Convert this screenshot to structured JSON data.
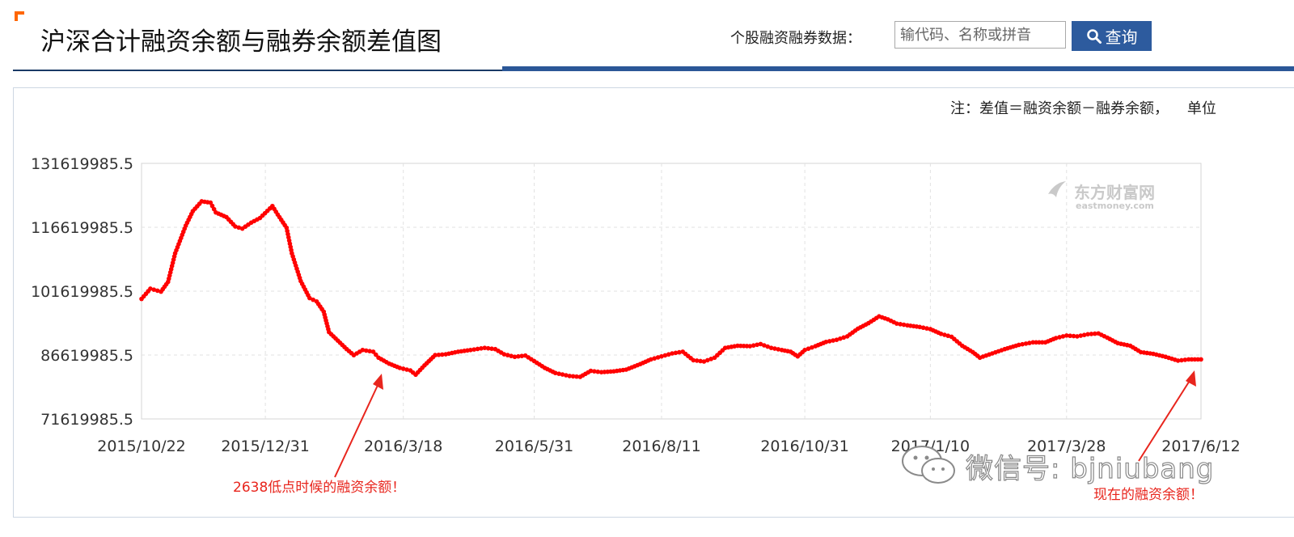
{
  "header": {
    "title": "沪深合计融资余额与融券余额差值图",
    "search_label": "个股融资融券数据：",
    "search_placeholder": "输代码、名称或拼音",
    "search_button": "查询"
  },
  "note": "注：差值＝融资余额－融券余额，    单位",
  "watermark": {
    "cn": "东方财富网",
    "en": "eastmoney.com"
  },
  "annotations": {
    "low_point": "2638低点时候的融资余额！",
    "current": "现在的融资余额！"
  },
  "wechat": "微信号: bjniubang",
  "colors": {
    "series": "#ff0000",
    "annotation": "#e8251d",
    "accent": "#2d5b9e",
    "corner": "#ff6600"
  },
  "chart_data": {
    "type": "line",
    "title": "",
    "xlabel": "",
    "ylabel": "",
    "grid": true,
    "ylim": [
      71619985.5,
      131619985.5
    ],
    "yticks": [
      "131619985.5",
      "116619985.5",
      "101619985.5",
      "86619985.5",
      "71619985.5"
    ],
    "xticks": [
      "2015/10/22",
      "2015/12/31",
      "2016/3/18",
      "2016/5/31",
      "2016/8/11",
      "2016/10/31",
      "2017/1/10",
      "2017/3/28",
      "2017/6/12"
    ],
    "series": [
      {
        "color": "#ff0000",
        "points": [
          [
            "2015/10/22",
            99800000.0
          ],
          [
            "2015/10/27",
            102200000.0
          ],
          [
            "2015/11/2",
            101500000.0
          ],
          [
            "2015/11/6",
            103800000.0
          ],
          [
            "2015/11/10",
            110500000.0
          ],
          [
            "2015/11/16",
            117000000.0
          ],
          [
            "2015/11/20",
            120400000.0
          ],
          [
            "2015/11/25",
            122700000.0
          ],
          [
            "2015/11/30",
            122400000.0
          ],
          [
            "2015/12/3",
            120100000.0
          ],
          [
            "2015/12/9",
            119000000.0
          ],
          [
            "2015/12/14",
            116800000.0
          ],
          [
            "2015/12/18",
            116300000.0
          ],
          [
            "2015/12/23",
            117700000.0
          ],
          [
            "2015/12/28",
            118800000.0
          ],
          [
            "2016/1/4",
            121600000.0
          ],
          [
            "2016/1/7",
            119600000.0
          ],
          [
            "2016/1/12",
            116500000.0
          ],
          [
            "2016/1/15",
            110500000.0
          ],
          [
            "2016/1/20",
            104000000.0
          ],
          [
            "2016/1/25",
            100000000.0
          ],
          [
            "2016/1/29",
            99200000.0
          ],
          [
            "2016/2/2",
            96800000.0
          ],
          [
            "2016/2/5",
            92000000.0
          ],
          [
            "2016/2/10",
            90000000.0
          ],
          [
            "2016/2/15",
            88000000.0
          ],
          [
            "2016/2/19",
            86600000.0
          ],
          [
            "2016/2/24",
            87800000.0
          ],
          [
            "2016/3/1",
            87400000.0
          ],
          [
            "2016/3/4",
            86000000.0
          ],
          [
            "2016/3/10",
            84600000.0
          ],
          [
            "2016/3/16",
            83600000.0
          ],
          [
            "2016/3/22",
            83000000.0
          ],
          [
            "2016/3/25",
            82000000.0
          ],
          [
            "2016/3/30",
            84200000.0
          ],
          [
            "2016/4/5",
            86600000.0
          ],
          [
            "2016/4/11",
            86800000.0
          ],
          [
            "2016/4/18",
            87400000.0
          ],
          [
            "2016/4/25",
            87800000.0
          ],
          [
            "2016/5/3",
            88300000.0
          ],
          [
            "2016/5/9",
            88000000.0
          ],
          [
            "2016/5/14",
            86800000.0
          ],
          [
            "2016/5/20",
            86200000.0
          ],
          [
            "2016/5/26",
            86500000.0
          ],
          [
            "2016/5/31",
            85200000.0
          ],
          [
            "2016/6/6",
            83600000.0
          ],
          [
            "2016/6/12",
            82400000.0
          ],
          [
            "2016/6/20",
            81700000.0
          ],
          [
            "2016/6/26",
            81500000.0
          ],
          [
            "2016/7/2",
            82900000.0
          ],
          [
            "2016/7/8",
            82600000.0
          ],
          [
            "2016/7/15",
            82800000.0
          ],
          [
            "2016/7/22",
            83200000.0
          ],
          [
            "2016/7/30",
            84500000.0
          ],
          [
            "2016/8/5",
            85600000.0
          ],
          [
            "2016/8/11",
            86300000.0
          ],
          [
            "2016/8/17",
            87000000.0
          ],
          [
            "2016/8/23",
            87400000.0
          ],
          [
            "2016/8/29",
            85400000.0
          ],
          [
            "2016/9/4",
            85100000.0
          ],
          [
            "2016/9/10",
            86000000.0
          ],
          [
            "2016/9/16",
            88300000.0
          ],
          [
            "2016/9/23",
            88800000.0
          ],
          [
            "2016/9/30",
            88700000.0
          ],
          [
            "2016/10/6",
            89200000.0
          ],
          [
            "2016/10/12",
            88300000.0
          ],
          [
            "2016/10/18",
            87800000.0
          ],
          [
            "2016/10/23",
            87400000.0
          ],
          [
            "2016/10/27",
            86300000.0
          ],
          [
            "2016/10/31",
            87800000.0
          ],
          [
            "2016/11/6",
            88700000.0
          ],
          [
            "2016/11/12",
            89700000.0
          ],
          [
            "2016/11/18",
            90200000.0
          ],
          [
            "2016/11/24",
            91000000.0
          ],
          [
            "2016/11/30",
            92800000.0
          ],
          [
            "2016/12/6",
            94100000.0
          ],
          [
            "2016/12/12",
            95700000.0
          ],
          [
            "2016/12/17",
            95000000.0
          ],
          [
            "2016/12/22",
            94000000.0
          ],
          [
            "2016/12/28",
            93600000.0
          ],
          [
            "2017/1/4",
            93200000.0
          ],
          [
            "2017/1/10",
            92700000.0
          ],
          [
            "2017/1/16",
            91600000.0
          ],
          [
            "2017/1/22",
            90900000.0
          ],
          [
            "2017/1/28",
            88800000.0
          ],
          [
            "2017/2/3",
            87300000.0
          ],
          [
            "2017/2/7",
            86000000.0
          ],
          [
            "2017/2/14",
            87000000.0
          ],
          [
            "2017/2/21",
            88000000.0
          ],
          [
            "2017/3/1",
            89000000.0
          ],
          [
            "2017/3/9",
            89600000.0
          ],
          [
            "2017/3/16",
            89600000.0
          ],
          [
            "2017/3/22",
            90600000.0
          ],
          [
            "2017/3/28",
            91200000.0
          ],
          [
            "2017/4/3",
            91000000.0
          ],
          [
            "2017/4/9",
            91500000.0
          ],
          [
            "2017/4/15",
            91700000.0
          ],
          [
            "2017/4/20",
            90700000.0
          ],
          [
            "2017/4/26",
            89400000.0
          ],
          [
            "2017/5/3",
            88800000.0
          ],
          [
            "2017/5/9",
            87300000.0
          ],
          [
            "2017/5/16",
            86900000.0
          ],
          [
            "2017/5/23",
            86200000.0
          ],
          [
            "2017/5/30",
            85300000.0
          ],
          [
            "2017/6/5",
            85600000.0
          ],
          [
            "2017/6/12",
            85600000.0
          ]
        ]
      }
    ]
  }
}
